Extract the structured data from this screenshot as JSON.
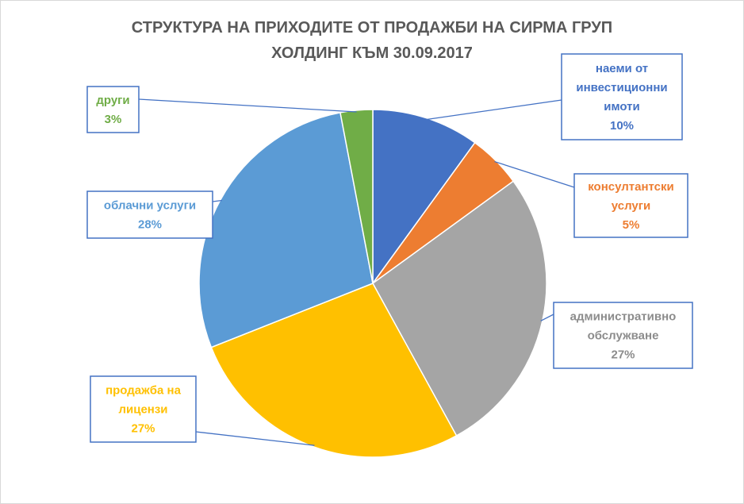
{
  "chart_data": {
    "type": "pie",
    "title_lines": [
      "СТРУКТУРА НА ПРИХОДИТЕ ОТ ПРОДАЖБИ НА СИРМА ГРУП",
      "ХОЛДИНГ КЪМ 30.09.2017"
    ],
    "slices": [
      {
        "name_lines": [
          "наеми от",
          "инвестиционни",
          "имоти"
        ],
        "value": 10,
        "label": "10%",
        "color": "#4472c4",
        "text_color": "#4472c4"
      },
      {
        "name_lines": [
          "консултантски",
          "услуги"
        ],
        "value": 5,
        "label": "5%",
        "color": "#ed7d31",
        "text_color": "#ed7d31"
      },
      {
        "name_lines": [
          "административно",
          "обслужване"
        ],
        "value": 27,
        "label": "27%",
        "color": "#a5a5a5",
        "text_color": "#8c8c8c"
      },
      {
        "name_lines": [
          "продажба на",
          "лицензи"
        ],
        "value": 27,
        "label": "27%",
        "color": "#ffc000",
        "text_color": "#ffc000"
      },
      {
        "name_lines": [
          "облачни услуги"
        ],
        "value": 28,
        "label": "28%",
        "color": "#5b9bd5",
        "text_color": "#5b9bd5"
      },
      {
        "name_lines": [
          "други"
        ],
        "value": 3,
        "label": "3%",
        "color": "#70ad47",
        "text_color": "#70ad47"
      }
    ],
    "legend": "none"
  }
}
